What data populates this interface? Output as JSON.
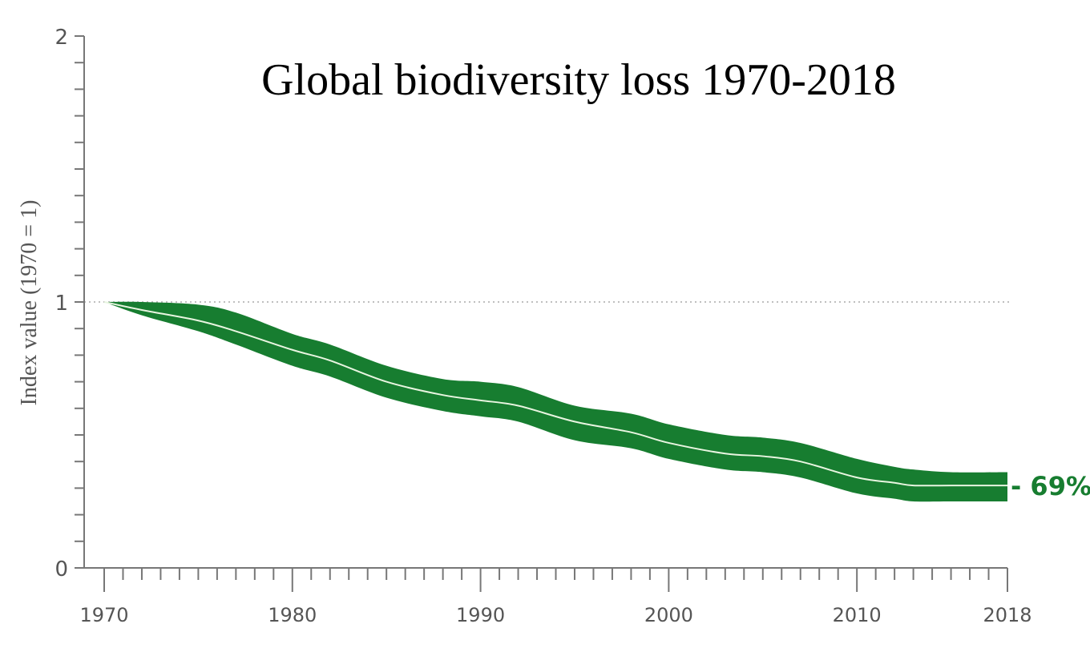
{
  "chart_data": {
    "type": "area",
    "title": "Global biodiversity loss 1970-2018",
    "xlabel": "",
    "ylabel": "Index value (1970 = 1)",
    "xlim": [
      1970,
      2018
    ],
    "ylim": [
      0,
      2
    ],
    "x_tick_labels": [
      "1970",
      "1980",
      "1990",
      "2000",
      "2010",
      "2018"
    ],
    "x_tick_values": [
      1970,
      1980,
      1990,
      2000,
      2010,
      2018
    ],
    "y_tick_labels": [
      "0",
      "1",
      "2"
    ],
    "y_tick_values": [
      0,
      1,
      2
    ],
    "y_minor_step": 0.1,
    "x_minor_step": 1,
    "reference_line": 1,
    "grid": false,
    "series": [
      {
        "name": "Index value",
        "x": [
          1970,
          1972,
          1975,
          1977,
          1980,
          1982,
          1985,
          1988,
          1990,
          1992,
          1995,
          1998,
          2000,
          2003,
          2005,
          2007,
          2010,
          2012,
          2013,
          2015,
          2018
        ],
        "values": [
          1.0,
          0.97,
          0.93,
          0.89,
          0.82,
          0.78,
          0.7,
          0.65,
          0.63,
          0.61,
          0.55,
          0.51,
          0.47,
          0.43,
          0.42,
          0.4,
          0.34,
          0.32,
          0.31,
          0.31,
          0.31
        ],
        "upper": [
          1.0,
          1.0,
          0.99,
          0.96,
          0.88,
          0.84,
          0.76,
          0.71,
          0.7,
          0.68,
          0.61,
          0.58,
          0.54,
          0.5,
          0.49,
          0.47,
          0.41,
          0.38,
          0.37,
          0.36,
          0.36
        ],
        "lower": [
          1.0,
          0.95,
          0.89,
          0.84,
          0.76,
          0.72,
          0.64,
          0.59,
          0.57,
          0.55,
          0.48,
          0.45,
          0.41,
          0.37,
          0.36,
          0.34,
          0.28,
          0.26,
          0.25,
          0.25,
          0.25
        ]
      }
    ],
    "annotations": [
      {
        "text": "- 69%",
        "x": 2018,
        "y": 0.31
      }
    ],
    "colors": {
      "band": "#177d30",
      "center_line": "#e8f5e0",
      "axis": "#777777",
      "annotation": "#177d30",
      "reference": "#aaaaaa"
    }
  }
}
